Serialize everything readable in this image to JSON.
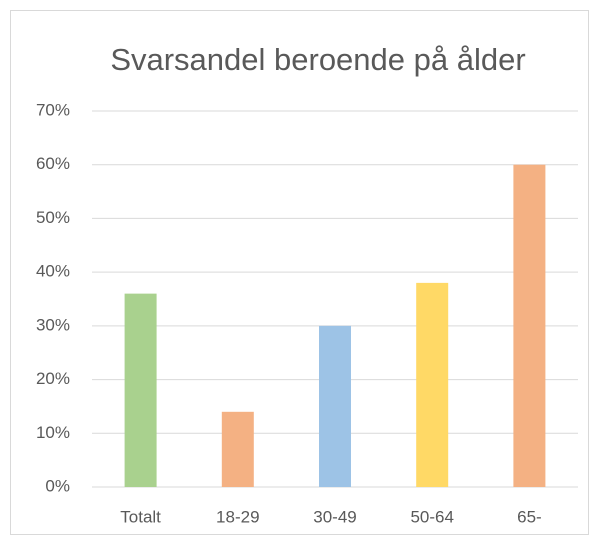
{
  "chart_data": {
    "type": "bar",
    "title": "Svarsandel beroende på ålder",
    "categories": [
      "Totalt",
      "18-29",
      "30-49",
      "50-64",
      "65-"
    ],
    "values": [
      36,
      14,
      30,
      38,
      60
    ],
    "colors": [
      "#a9d18e",
      "#f4b183",
      "#9dc3e6",
      "#ffd966",
      "#f4b183"
    ],
    "ylim": [
      0,
      70
    ],
    "yticks": [
      {
        "value": 0,
        "label": "0%"
      },
      {
        "value": 10,
        "label": "10%"
      },
      {
        "value": 20,
        "label": "20%"
      },
      {
        "value": 30,
        "label": "30%"
      },
      {
        "value": 40,
        "label": "40%"
      },
      {
        "value": 50,
        "label": "50%"
      },
      {
        "value": 60,
        "label": "60%"
      },
      {
        "value": 70,
        "label": "70%"
      }
    ],
    "grid": true
  }
}
